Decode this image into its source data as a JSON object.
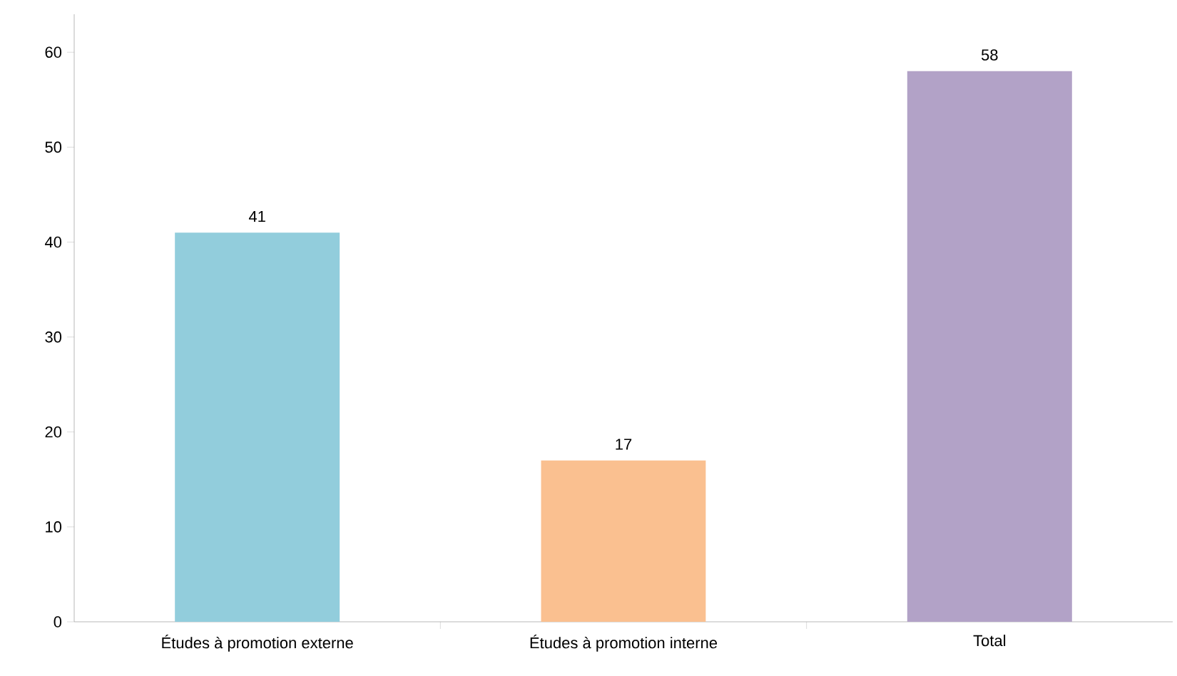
{
  "chart_data": {
    "type": "bar",
    "categories": [
      "Études à promotion externe",
      "Études à promotion interne",
      "Total"
    ],
    "values": [
      41,
      17,
      58
    ],
    "colors": [
      "#92cddc",
      "#fac090",
      "#b2a2c7"
    ],
    "ylim": [
      0,
      64
    ],
    "yticks": [
      0,
      10,
      20,
      30,
      40,
      50,
      60
    ],
    "data_labels": true
  }
}
